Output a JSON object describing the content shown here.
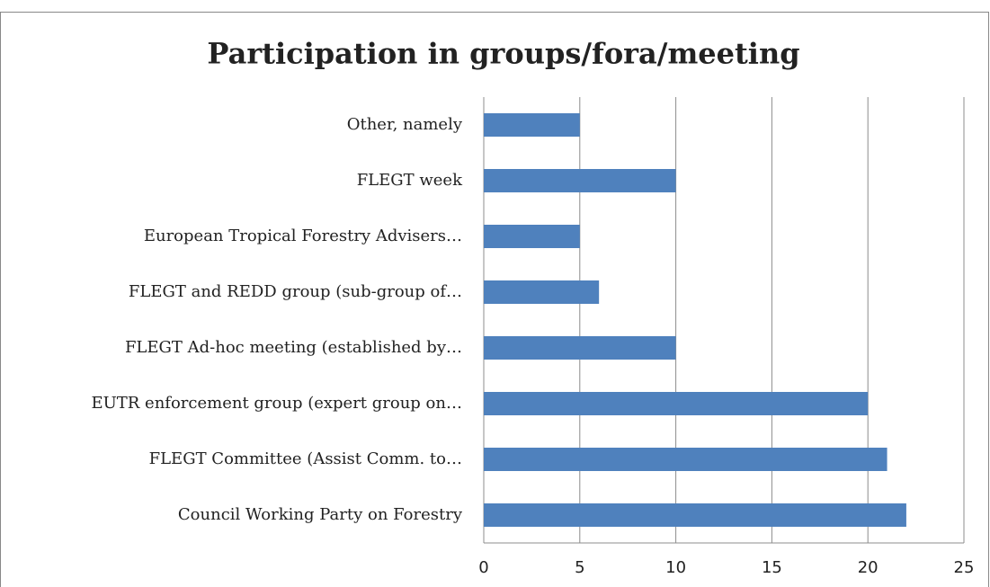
{
  "chart_data": {
    "type": "bar",
    "orientation": "horizontal",
    "title": "Participation in groups/fora/meeting",
    "categories": [
      "Other, namely",
      "FLEGT week",
      "European Tropical Forestry Advisers…",
      "FLEGT and REDD group (sub-group of…",
      "FLEGT Ad-hoc meeting (established by…",
      "EUTR enforcement group (expert group on…",
      "FLEGT Committee (Assist Comm. to…",
      "Council Working Party on Forestry"
    ],
    "values": [
      5,
      10,
      5,
      6,
      10,
      20,
      21,
      22
    ],
    "color": "#4f81bd",
    "xlim": [
      0,
      25
    ],
    "xticks": [
      0,
      5,
      10,
      15,
      20,
      25
    ],
    "grid": true
  }
}
